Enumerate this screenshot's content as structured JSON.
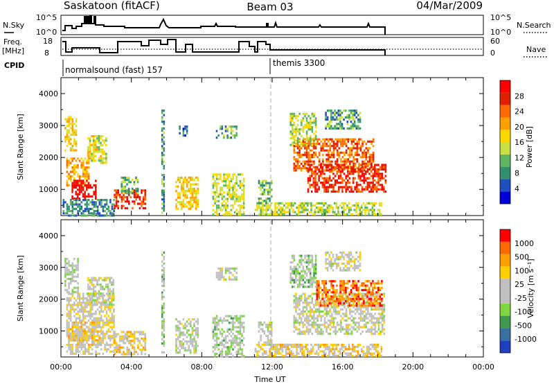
{
  "header": {
    "title_left": "Saskatoon (fitACF)",
    "title_center": "Beam 03",
    "title_right": "04/Mar/2009"
  },
  "status_panels": {
    "nsky_label": "N.Sky",
    "nsky_ticks": [
      "10^5",
      "10^0"
    ],
    "nsearch_label": "N.Search",
    "nsearch_ticks": [
      "10^5",
      "10^0"
    ],
    "freq_label_1": "Freq.",
    "freq_label_2": "[MHz]",
    "freq_ticks": [
      "18",
      "8"
    ],
    "nave_label": "Nave",
    "nave_ticks": [
      "60",
      "0"
    ],
    "cpid_label": "CPID",
    "cpid_segments": [
      {
        "name": "normalsound (fast) 157",
        "start": 0
      },
      {
        "name": "themis 3300",
        "start": 12
      }
    ]
  },
  "chart_data": [
    {
      "type": "heatmap",
      "title": "",
      "xlabel": "Time UT",
      "ylabel": "Slant Range [km]",
      "colorbar_label": "Power [dB]",
      "xlim": [
        0,
        24
      ],
      "ylim": [
        180,
        4500
      ],
      "x_ticks": [
        "00:00",
        "04:00",
        "08:00",
        "12:00",
        "16:00",
        "20:00",
        "00:00"
      ],
      "y_ticks": [
        1000,
        2000,
        3000,
        4000
      ],
      "colorbar_ticks": [
        "4",
        "8",
        "12",
        "16",
        "20",
        "24",
        "28"
      ],
      "colorbar_colors": [
        "#0000d8",
        "#2050c0",
        "#2f8f6f",
        "#5fb55f",
        "#c8e040",
        "#ffd800",
        "#ffa000",
        "#ff6a00",
        "#e02000",
        "#ff0000"
      ],
      "echo_regions": [
        {
          "t": [
            0.2,
            0.9
          ],
          "r": [
            2200,
            3300
          ],
          "level": 0.55
        },
        {
          "t": [
            0.3,
            1.6
          ],
          "r": [
            1100,
            2000
          ],
          "level": 0.65
        },
        {
          "t": [
            0.6,
            2.0
          ],
          "r": [
            700,
            1300
          ],
          "level": 0.95
        },
        {
          "t": [
            1.5,
            2.6
          ],
          "r": [
            1800,
            2700
          ],
          "level": 0.5
        },
        {
          "t": [
            0.1,
            3.0
          ],
          "r": [
            200,
            700
          ],
          "level": 0.25
        },
        {
          "t": [
            3.0,
            4.8
          ],
          "r": [
            400,
            1000
          ],
          "level": 0.85
        },
        {
          "t": [
            3.4,
            4.4
          ],
          "r": [
            900,
            1400
          ],
          "level": 0.35
        },
        {
          "t": [
            5.7,
            5.9
          ],
          "r": [
            300,
            3500
          ],
          "level": 0.3
        },
        {
          "t": [
            6.5,
            7.8
          ],
          "r": [
            400,
            1400
          ],
          "level": 0.55
        },
        {
          "t": [
            6.6,
            7.2
          ],
          "r": [
            2700,
            3000
          ],
          "level": 0.2
        },
        {
          "t": [
            8.6,
            10.4
          ],
          "r": [
            200,
            1500
          ],
          "level": 0.45
        },
        {
          "t": [
            8.8,
            10.0
          ],
          "r": [
            2600,
            3000
          ],
          "level": 0.3
        },
        {
          "t": [
            11.0,
            18.2
          ],
          "r": [
            200,
            600
          ],
          "level": 0.45
        },
        {
          "t": [
            11.2,
            12.0
          ],
          "r": [
            600,
            1300
          ],
          "level": 0.35
        },
        {
          "t": [
            13.2,
            17.8
          ],
          "r": [
            1600,
            2600
          ],
          "level": 0.75
        },
        {
          "t": [
            14.0,
            18.4
          ],
          "r": [
            900,
            1800
          ],
          "level": 0.85
        },
        {
          "t": [
            13.0,
            14.5
          ],
          "r": [
            2400,
            3400
          ],
          "level": 0.45
        },
        {
          "t": [
            15.0,
            17.0
          ],
          "r": [
            2900,
            3500
          ],
          "level": 0.3
        }
      ]
    },
    {
      "type": "heatmap",
      "title": "",
      "xlabel": "Time UT",
      "ylabel": "Slant Range [km]",
      "colorbar_label": "Velocity [m s⁻¹]",
      "xlim": [
        0,
        24
      ],
      "ylim": [
        180,
        4500
      ],
      "x_ticks": [
        "00:00",
        "04:00",
        "08:00",
        "12:00",
        "16:00",
        "20:00",
        "00:00"
      ],
      "y_ticks": [
        1000,
        2000,
        3000,
        4000
      ],
      "colorbar_ticks": [
        "1000",
        "500",
        "100",
        "25",
        "-25",
        "-100",
        "-500",
        "-1000"
      ],
      "colorbar_colors": [
        "#2040c0",
        "#3a70a0",
        "#3f9a4f",
        "#7ed640",
        "#c0c0c0",
        "#c0c0c0",
        "#ffd000",
        "#ffa000",
        "#ff6a00",
        "#ff0000"
      ],
      "echo_regions": [
        {
          "t": [
            0.2,
            1.0
          ],
          "r": [
            2200,
            3300
          ],
          "level": 0.45
        },
        {
          "t": [
            0.3,
            3.0
          ],
          "r": [
            300,
            2200
          ],
          "level": 0.55
        },
        {
          "t": [
            0.4,
            2.2
          ],
          "r": [
            600,
            1300
          ],
          "level": 0.62
        },
        {
          "t": [
            1.5,
            3.0
          ],
          "r": [
            1800,
            2700
          ],
          "level": 0.48
        },
        {
          "t": [
            3.0,
            4.8
          ],
          "r": [
            300,
            1000
          ],
          "level": 0.62
        },
        {
          "t": [
            5.7,
            5.9
          ],
          "r": [
            300,
            3500
          ],
          "level": 0.4
        },
        {
          "t": [
            6.5,
            7.8
          ],
          "r": [
            300,
            1400
          ],
          "level": 0.48
        },
        {
          "t": [
            8.6,
            10.4
          ],
          "r": [
            200,
            1500
          ],
          "level": 0.44
        },
        {
          "t": [
            8.8,
            10.0
          ],
          "r": [
            2600,
            3000
          ],
          "level": 0.48
        },
        {
          "t": [
            11.0,
            18.2
          ],
          "r": [
            200,
            600
          ],
          "level": 0.6
        },
        {
          "t": [
            11.2,
            12.0
          ],
          "r": [
            600,
            1300
          ],
          "level": 0.5
        },
        {
          "t": [
            13.2,
            18.4
          ],
          "r": [
            900,
            2200
          ],
          "level": 0.5
        },
        {
          "t": [
            14.5,
            18.2
          ],
          "r": [
            1800,
            2600
          ],
          "level": 0.82
        },
        {
          "t": [
            13.0,
            14.5
          ],
          "r": [
            2400,
            3400
          ],
          "level": 0.4
        },
        {
          "t": [
            15.0,
            17.0
          ],
          "r": [
            2900,
            3500
          ],
          "level": 0.52
        }
      ]
    }
  ]
}
